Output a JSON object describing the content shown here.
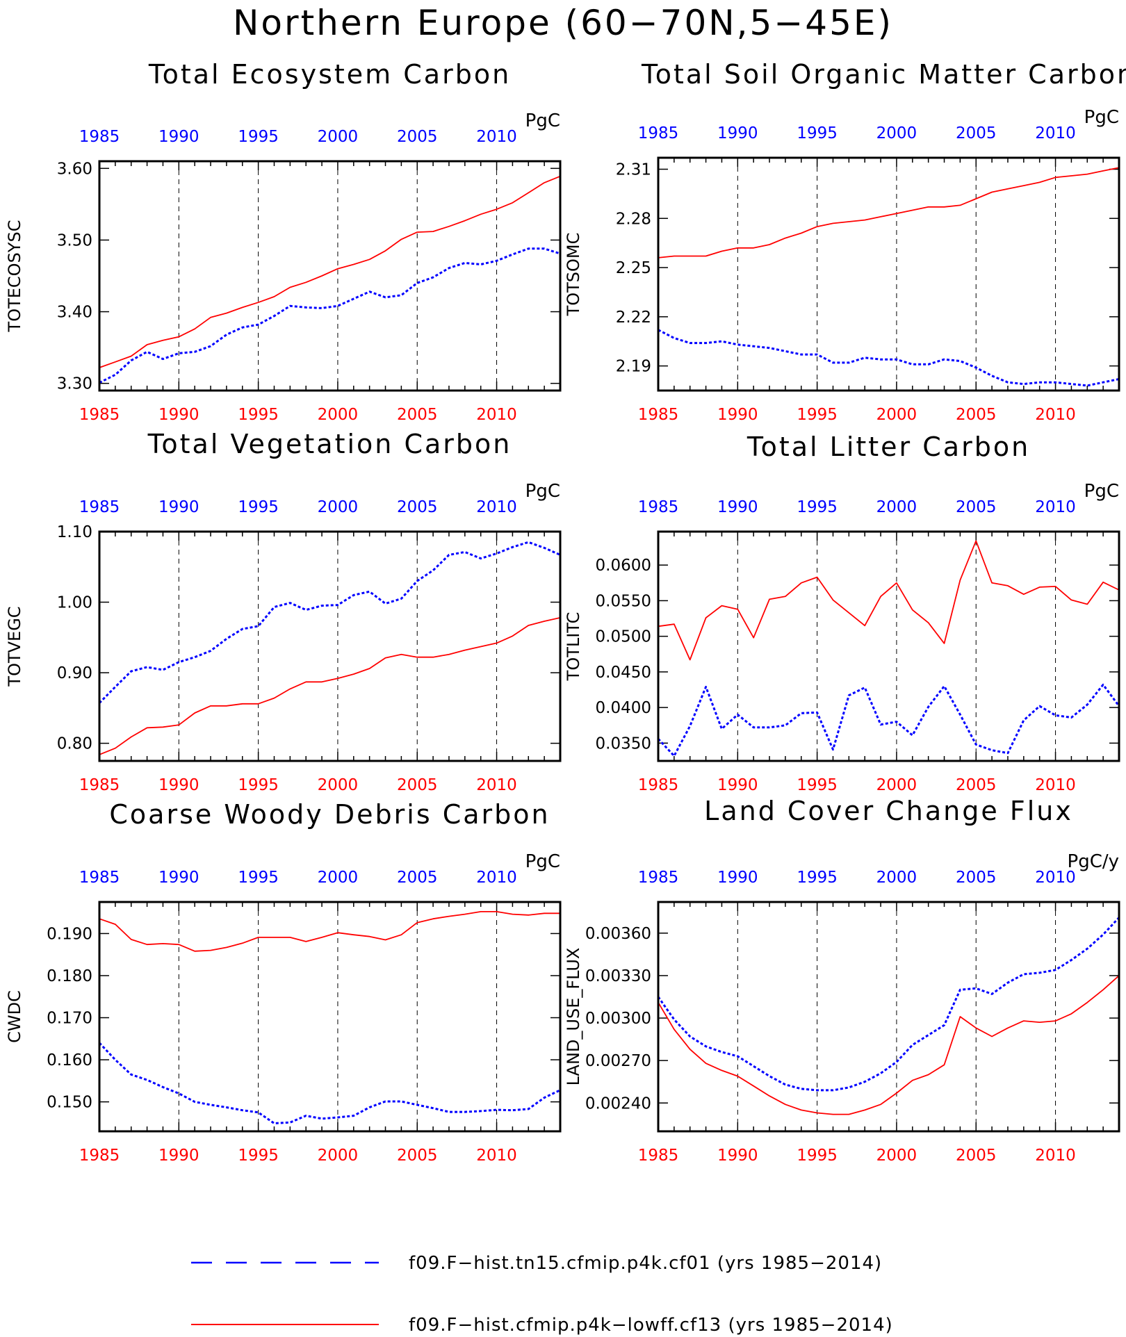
{
  "figure": {
    "title": "Northern Europe (60−70N,5−45E)",
    "colors": {
      "case_blue": "#0000ff",
      "case_red": "#ff0000",
      "bottom_ticks": "#ff0000",
      "top_ticks": "#0000ff"
    }
  },
  "legend": {
    "entries": [
      {
        "label": "f09.F−hist.tn15.cfmip.p4k.cf01 (yrs 1985−2014)",
        "color": "#0000ff",
        "style": "dashed"
      },
      {
        "label": "f09.F−hist.cfmip.p4k−lowff.cf13 (yrs 1985−2014)",
        "color": "#ff0000",
        "style": "solid"
      }
    ]
  },
  "chart_data": [
    {
      "type": "line",
      "title": "Total Ecosystem Carbon",
      "ylabel": "TOTECOSYSC",
      "units": "PgC",
      "x": [
        1985,
        1986,
        1987,
        1988,
        1989,
        1990,
        1991,
        1992,
        1993,
        1994,
        1995,
        1996,
        1997,
        1998,
        1999,
        2000,
        2001,
        2002,
        2003,
        2004,
        2005,
        2006,
        2007,
        2008,
        2009,
        2010,
        2011,
        2012,
        2013,
        2014
      ],
      "xlim": [
        1985,
        2014
      ],
      "xticks": [
        1985,
        1990,
        1995,
        2000,
        2005,
        2010
      ],
      "ylim": [
        3.29,
        3.61
      ],
      "yticks": [
        3.3,
        3.4,
        3.5,
        3.6
      ],
      "yticklabels": [
        "3.30",
        "3.40",
        "3.50",
        "3.60"
      ],
      "series": [
        {
          "values": [
            3.301,
            3.312,
            3.332,
            3.344,
            3.334,
            3.342,
            3.344,
            3.352,
            3.368,
            3.378,
            3.382,
            3.394,
            3.408,
            3.406,
            3.405,
            3.408,
            3.418,
            3.428,
            3.42,
            3.423,
            3.44,
            3.448,
            3.461,
            3.468,
            3.466,
            3.471,
            3.48,
            3.488,
            3.488,
            3.481
          ],
          "color": "#0000ff",
          "style": "dotted"
        },
        {
          "values": [
            3.322,
            3.33,
            3.338,
            3.354,
            3.36,
            3.365,
            3.376,
            3.392,
            3.398,
            3.406,
            3.413,
            3.421,
            3.434,
            3.441,
            3.45,
            3.46,
            3.466,
            3.473,
            3.485,
            3.501,
            3.511,
            3.512,
            3.519,
            3.527,
            3.536,
            3.543,
            3.552,
            3.566,
            3.58,
            3.589
          ],
          "color": "#ff0000",
          "style": "solid"
        }
      ]
    },
    {
      "type": "line",
      "title": "Total Soil Organic Matter Carbon",
      "ylabel": "TOTSOMC",
      "units": "PgC",
      "x": [
        1985,
        1986,
        1987,
        1988,
        1989,
        1990,
        1991,
        1992,
        1993,
        1994,
        1995,
        1996,
        1997,
        1998,
        1999,
        2000,
        2001,
        2002,
        2003,
        2004,
        2005,
        2006,
        2007,
        2008,
        2009,
        2010,
        2011,
        2012,
        2013,
        2014
      ],
      "xlim": [
        1985,
        2014
      ],
      "xticks": [
        1985,
        1990,
        1995,
        2000,
        2005,
        2010
      ],
      "ylim": [
        2.175,
        2.317
      ],
      "yticks": [
        2.19,
        2.22,
        2.25,
        2.28,
        2.31
      ],
      "yticklabels": [
        "2.19",
        "2.22",
        "2.25",
        "2.28",
        "2.31"
      ],
      "series": [
        {
          "values": [
            2.212,
            2.207,
            2.204,
            2.204,
            2.205,
            2.203,
            2.202,
            2.201,
            2.199,
            2.197,
            2.197,
            2.192,
            2.192,
            2.195,
            2.194,
            2.194,
            2.191,
            2.191,
            2.194,
            2.193,
            2.189,
            2.184,
            2.18,
            2.179,
            2.18,
            2.18,
            2.179,
            2.178,
            2.18,
            2.182
          ],
          "color": "#0000ff",
          "style": "dotted"
        },
        {
          "values": [
            2.256,
            2.257,
            2.257,
            2.257,
            2.26,
            2.262,
            2.262,
            2.264,
            2.268,
            2.271,
            2.275,
            2.277,
            2.278,
            2.279,
            2.281,
            2.283,
            2.285,
            2.287,
            2.287,
            2.288,
            2.292,
            2.296,
            2.298,
            2.3,
            2.302,
            2.305,
            2.306,
            2.307,
            2.309,
            2.311
          ],
          "color": "#ff0000",
          "style": "solid"
        }
      ]
    },
    {
      "type": "line",
      "title": "Total Vegetation Carbon",
      "ylabel": "TOTVEGC",
      "units": "PgC",
      "x": [
        1985,
        1986,
        1987,
        1988,
        1989,
        1990,
        1991,
        1992,
        1993,
        1994,
        1995,
        1996,
        1997,
        1998,
        1999,
        2000,
        2001,
        2002,
        2003,
        2004,
        2005,
        2006,
        2007,
        2008,
        2009,
        2010,
        2011,
        2012,
        2013,
        2014
      ],
      "xlim": [
        1985,
        2014
      ],
      "xticks": [
        1985,
        1990,
        1995,
        2000,
        2005,
        2010
      ],
      "ylim": [
        0.775,
        1.1
      ],
      "yticks": [
        0.8,
        0.9,
        1.0,
        1.1
      ],
      "yticklabels": [
        "0.80",
        "0.90",
        "1.00",
        "1.10"
      ],
      "series": [
        {
          "values": [
            0.857,
            0.88,
            0.902,
            0.908,
            0.904,
            0.915,
            0.922,
            0.931,
            0.948,
            0.962,
            0.966,
            0.993,
            0.999,
            0.989,
            0.995,
            0.996,
            1.01,
            1.015,
            0.998,
            1.005,
            1.03,
            1.045,
            1.067,
            1.071,
            1.062,
            1.069,
            1.078,
            1.085,
            1.077,
            1.067
          ],
          "color": "#0000ff",
          "style": "dotted"
        },
        {
          "values": [
            0.784,
            0.793,
            0.809,
            0.822,
            0.823,
            0.826,
            0.843,
            0.853,
            0.853,
            0.856,
            0.856,
            0.864,
            0.877,
            0.887,
            0.887,
            0.892,
            0.898,
            0.906,
            0.921,
            0.926,
            0.922,
            0.922,
            0.926,
            0.932,
            0.937,
            0.942,
            0.952,
            0.967,
            0.973,
            0.978
          ],
          "color": "#ff0000",
          "style": "solid"
        }
      ]
    },
    {
      "type": "line",
      "title": "Total Litter Carbon",
      "ylabel": "TOTLITC",
      "units": "PgC",
      "x": [
        1985,
        1986,
        1987,
        1988,
        1989,
        1990,
        1991,
        1992,
        1993,
        1994,
        1995,
        1996,
        1997,
        1998,
        1999,
        2000,
        2001,
        2002,
        2003,
        2004,
        2005,
        2006,
        2007,
        2008,
        2009,
        2010,
        2011,
        2012,
        2013,
        2014
      ],
      "xlim": [
        1985,
        2014
      ],
      "xticks": [
        1985,
        1990,
        1995,
        2000,
        2005,
        2010
      ],
      "ylim": [
        0.0325,
        0.0647
      ],
      "yticks": [
        0.035,
        0.04,
        0.045,
        0.05,
        0.055,
        0.06
      ],
      "yticklabels": [
        "0.0350",
        "0.0400",
        "0.0450",
        "0.0500",
        "0.0550",
        "0.0600"
      ],
      "series": [
        {
          "values": [
            0.0356,
            0.0332,
            0.0374,
            0.0429,
            0.037,
            0.039,
            0.0372,
            0.0372,
            0.0375,
            0.0392,
            0.0393,
            0.0341,
            0.0417,
            0.0428,
            0.0376,
            0.038,
            0.0361,
            0.0401,
            0.043,
            0.039,
            0.0348,
            0.034,
            0.0336,
            0.0382,
            0.0402,
            0.0389,
            0.0386,
            0.0404,
            0.0432,
            0.0402
          ],
          "color": "#0000ff",
          "style": "dotted"
        },
        {
          "values": [
            0.0514,
            0.0517,
            0.0467,
            0.0526,
            0.0543,
            0.0538,
            0.0498,
            0.0552,
            0.0556,
            0.0575,
            0.0583,
            0.0551,
            0.0533,
            0.0515,
            0.0556,
            0.0575,
            0.0537,
            0.0519,
            0.049,
            0.0579,
            0.0634,
            0.0575,
            0.0571,
            0.0559,
            0.0569,
            0.057,
            0.0551,
            0.0545,
            0.0576,
            0.0565
          ],
          "color": "#ff0000",
          "style": "solid"
        }
      ]
    },
    {
      "type": "line",
      "title": "Coarse Woody Debris Carbon",
      "ylabel": "CWDC",
      "units": "PgC",
      "x": [
        1985,
        1986,
        1987,
        1988,
        1989,
        1990,
        1991,
        1992,
        1993,
        1994,
        1995,
        1996,
        1997,
        1998,
        1999,
        2000,
        2001,
        2002,
        2003,
        2004,
        2005,
        2006,
        2007,
        2008,
        2009,
        2010,
        2011,
        2012,
        2013,
        2014
      ],
      "xlim": [
        1985,
        2014
      ],
      "xticks": [
        1985,
        1990,
        1995,
        2000,
        2005,
        2010
      ],
      "ylim": [
        0.143,
        0.1975
      ],
      "yticks": [
        0.15,
        0.16,
        0.17,
        0.18,
        0.19
      ],
      "yticklabels": [
        "0.150",
        "0.160",
        "0.170",
        "0.180",
        "0.190"
      ],
      "series": [
        {
          "values": [
            0.164,
            0.16,
            0.1565,
            0.1552,
            0.1535,
            0.152,
            0.15,
            0.1493,
            0.1487,
            0.148,
            0.1475,
            0.1449,
            0.1451,
            0.1467,
            0.146,
            0.1463,
            0.1467,
            0.1487,
            0.1501,
            0.1501,
            0.1493,
            0.1485,
            0.1476,
            0.1476,
            0.1478,
            0.1481,
            0.148,
            0.1483,
            0.151,
            0.1528
          ],
          "color": "#0000ff",
          "style": "dotted"
        },
        {
          "values": [
            0.1935,
            0.1922,
            0.1886,
            0.1874,
            0.1876,
            0.1874,
            0.1858,
            0.186,
            0.1867,
            0.1877,
            0.1891,
            0.1891,
            0.1891,
            0.1881,
            0.1891,
            0.1902,
            0.1897,
            0.1893,
            0.1885,
            0.1897,
            0.1926,
            0.1935,
            0.1941,
            0.1946,
            0.1952,
            0.1952,
            0.1946,
            0.1944,
            0.1948,
            0.1948
          ],
          "color": "#ff0000",
          "style": "solid"
        }
      ]
    },
    {
      "type": "line",
      "title": "Land Cover Change Flux",
      "ylabel": "LAND_USE_FLUX",
      "units": "PgC/y",
      "x": [
        1985,
        1986,
        1987,
        1988,
        1989,
        1990,
        1991,
        1992,
        1993,
        1994,
        1995,
        1996,
        1997,
        1998,
        1999,
        2000,
        2001,
        2002,
        2003,
        2004,
        2005,
        2006,
        2007,
        2008,
        2009,
        2010,
        2011,
        2012,
        2013,
        2014
      ],
      "xlim": [
        1985,
        2014
      ],
      "xticks": [
        1985,
        1990,
        1995,
        2000,
        2005,
        2010
      ],
      "ylim": [
        0.0022,
        0.00382
      ],
      "yticks": [
        0.0024,
        0.0027,
        0.003,
        0.0033,
        0.0036
      ],
      "yticklabels": [
        "0.00240",
        "0.00270",
        "0.00300",
        "0.00330",
        "0.00360"
      ],
      "series": [
        {
          "values": [
            0.00315,
            0.00299,
            0.00287,
            0.0028,
            0.00276,
            0.00273,
            0.00266,
            0.00259,
            0.00253,
            0.0025,
            0.00249,
            0.00249,
            0.00251,
            0.00255,
            0.00261,
            0.00269,
            0.00281,
            0.00288,
            0.00295,
            0.0032,
            0.00321,
            0.00317,
            0.00325,
            0.00331,
            0.00332,
            0.00334,
            0.00341,
            0.00349,
            0.00359,
            0.00371
          ],
          "color": "#0000ff",
          "style": "dotted"
        },
        {
          "values": [
            0.00311,
            0.00292,
            0.00278,
            0.00268,
            0.00263,
            0.00259,
            0.00252,
            0.00245,
            0.00239,
            0.00235,
            0.00233,
            0.00232,
            0.00232,
            0.00235,
            0.00239,
            0.00247,
            0.00256,
            0.0026,
            0.00267,
            0.00301,
            0.00293,
            0.00287,
            0.00293,
            0.00298,
            0.00297,
            0.00298,
            0.00303,
            0.00311,
            0.0032,
            0.0033
          ],
          "color": "#ff0000",
          "style": "solid"
        }
      ]
    }
  ]
}
